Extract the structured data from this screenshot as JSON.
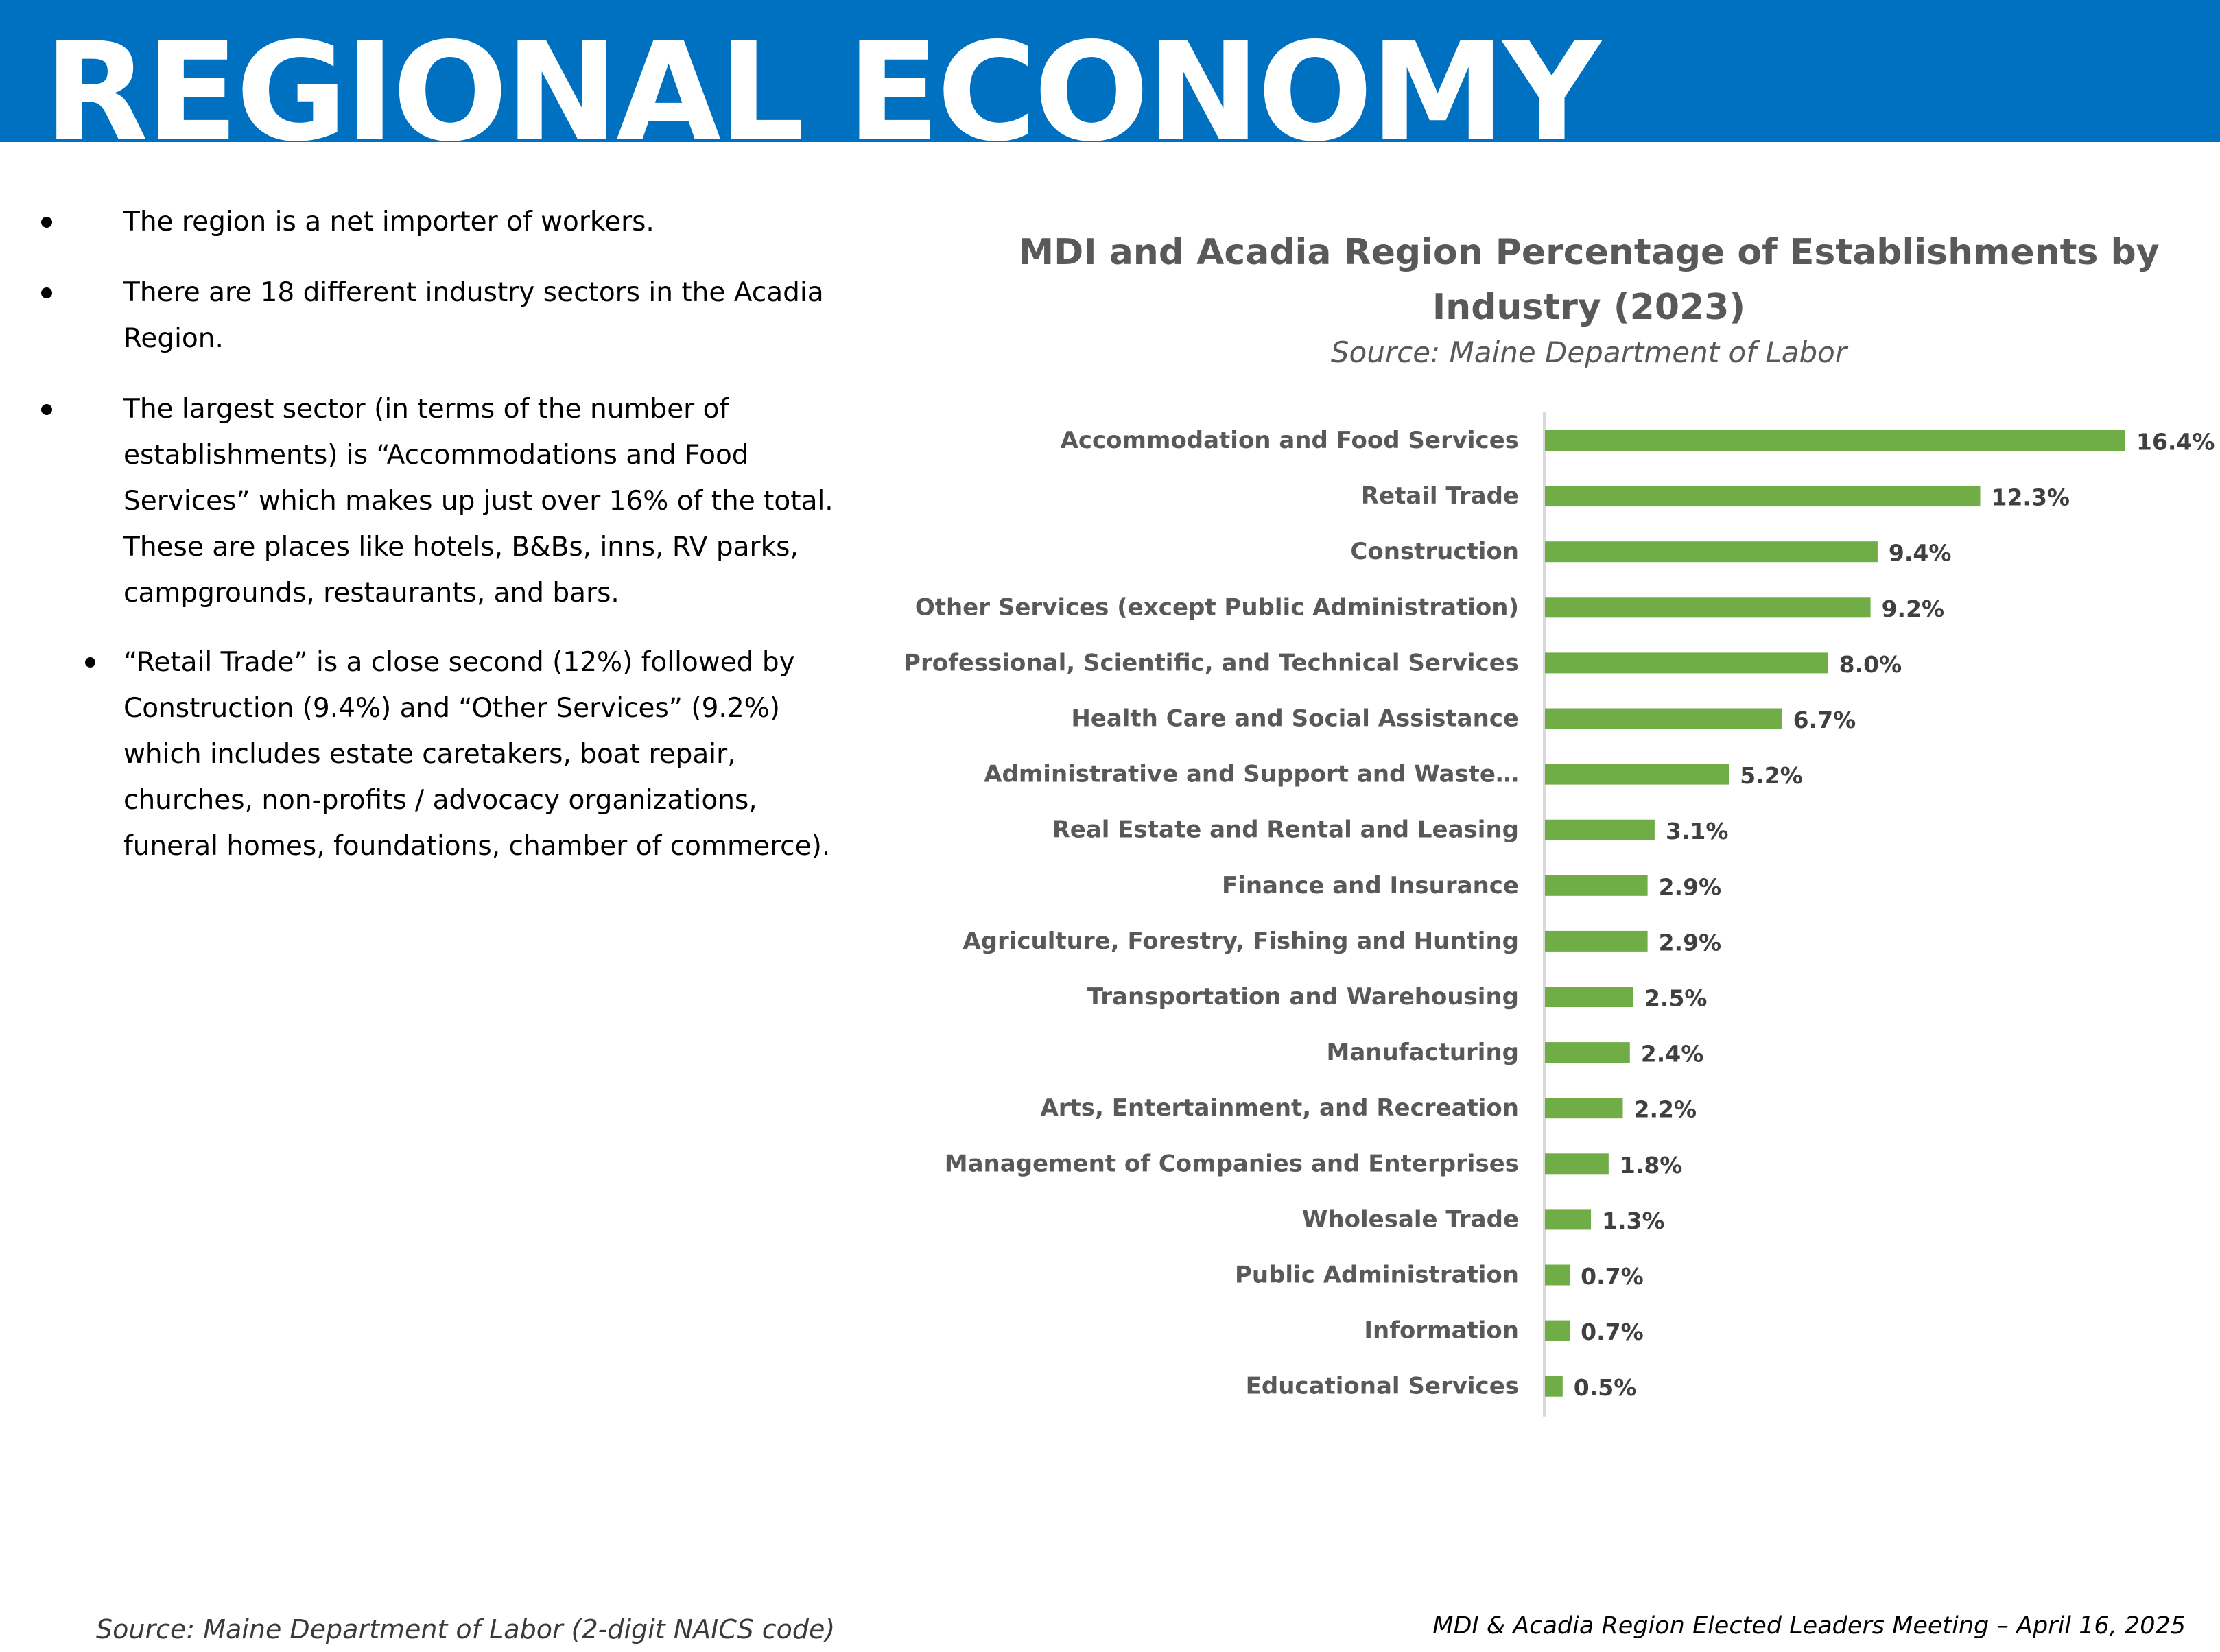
{
  "header": {
    "title": "REGIONAL ECONOMY",
    "background_color": "#0070c0"
  },
  "bullets": [
    {
      "text": "The region is a net importer of workers.",
      "level": 1
    },
    {
      "text": "There are 18 different industry sectors in the Acadia Region.",
      "level": 1
    },
    {
      "text": "The largest sector (in terms of the number of establishments) is “Accommodations and Food Services” which makes up just over 16% of the total. These are places like hotels, B&Bs, inns, RV parks, campgrounds, restaurants, and bars.",
      "level": 1
    },
    {
      "text": "“Retail Trade” is a close second (12%) followed by Construction (9.4%) and “Other Services” (9.2%) which includes estate caretakers, boat repair, churches, non-profits / advocacy organizations, funeral homes, foundations, chamber of commerce).",
      "level": 2
    }
  ],
  "chart_data": {
    "type": "bar",
    "orientation": "horizontal",
    "title": "MDI and Acadia Region Percentage of Establishments by Industry (2023)",
    "subtitle": "Source: Maine Department of Labor",
    "categories": [
      "Accommodation and Food Services",
      "Retail Trade",
      "Construction",
      "Other Services (except Public Administration)",
      "Professional, Scientific, and Technical Services",
      "Health Care and Social Assistance",
      "Administrative and Support and Waste…",
      "Real Estate and Rental and Leasing",
      "Finance and Insurance",
      "Agriculture, Forestry, Fishing and Hunting",
      "Transportation and Warehousing",
      "Manufacturing",
      "Arts, Entertainment, and Recreation",
      "Management of Companies and Enterprises",
      "Wholesale Trade",
      "Public Administration",
      "Information",
      "Educational Services"
    ],
    "values": [
      16.4,
      12.3,
      9.4,
      9.2,
      8.0,
      6.7,
      5.2,
      3.1,
      2.9,
      2.9,
      2.5,
      2.4,
      2.2,
      1.8,
      1.3,
      0.7,
      0.7,
      0.5
    ],
    "data_labels": [
      "16.4%",
      "12.3%",
      "9.4%",
      "9.2%",
      "8.0%",
      "6.7%",
      "5.2%",
      "3.1%",
      "2.9%",
      "2.9%",
      "2.5%",
      "2.4%",
      "2.2%",
      "1.8%",
      "1.3%",
      "0.7%",
      "0.7%",
      "0.5%"
    ],
    "xlim": [
      0,
      16.4
    ],
    "bar_color": "#70ad47",
    "axis_color": "#d9d9d9",
    "label_color": "#595959",
    "value_label_color": "#404040",
    "grid": false,
    "legend": "none"
  },
  "footer": {
    "source": "Source: Maine Department of Labor (2-digit NAICS code)",
    "meeting": "MDI & Acadia Region Elected Leaders Meeting – April 16, 2025"
  }
}
